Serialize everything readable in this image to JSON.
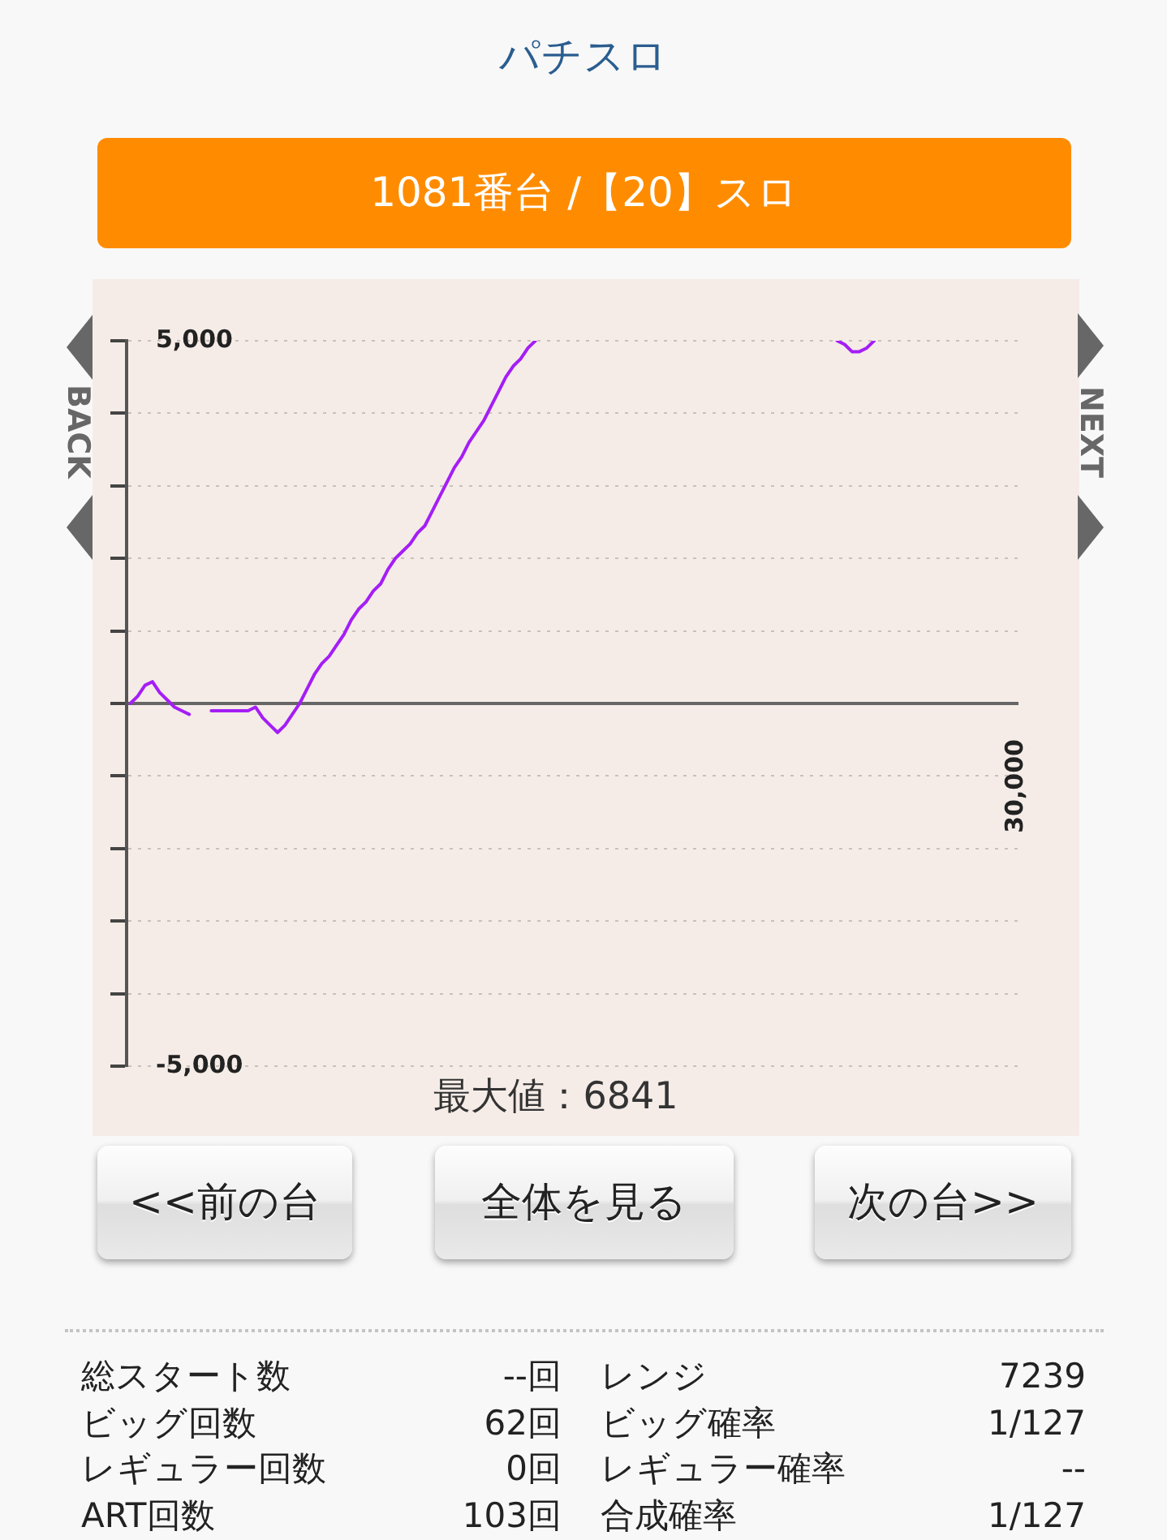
{
  "chart_data": {
    "type": "line",
    "title": "パチスロ",
    "subtitle": "1081番台 /【20】スロ",
    "categories": [
      null,
      null,
      null,
      null,
      null,
      null,
      null,
      null,
      null,
      null,
      null,
      null,
      null,
      null,
      null,
      null,
      null,
      null,
      null,
      null,
      null,
      null,
      null,
      null,
      null,
      null,
      null,
      null,
      null,
      null,
      null,
      null,
      null,
      null,
      null,
      null,
      null,
      null,
      null,
      null,
      null,
      null,
      null,
      null,
      null,
      null,
      null,
      null,
      null,
      null,
      null,
      null,
      null,
      null,
      null,
      null,
      null,
      null,
      null,
      null,
      null,
      null,
      null,
      null,
      null,
      null,
      null,
      null,
      null,
      null,
      null,
      null,
      null,
      null,
      null,
      null,
      null,
      null,
      null,
      null,
      null,
      null,
      null,
      null,
      null,
      null,
      null,
      null,
      null,
      null,
      null,
      null,
      null,
      null,
      null,
      null,
      null,
      null,
      null,
      null,
      null,
      null,
      null,
      null,
      null,
      null,
      null,
      null,
      null,
      null,
      null,
      null,
      null,
      null,
      null,
      null,
      null,
      null,
      null,
      null,
      null
    ],
    "values": [
      0,
      100,
      250,
      300,
      150,
      50,
      -50,
      -100,
      -150,
      null,
      null,
      -100,
      -100,
      -100,
      -100,
      -100,
      -100,
      -50,
      -200,
      -300,
      -400,
      -300,
      -150,
      0,
      200,
      400,
      550,
      650,
      800,
      950,
      1150,
      1300,
      1400,
      1550,
      1650,
      1850,
      2000,
      2100,
      2200,
      2350,
      2450,
      2650,
      2850,
      3050,
      3250,
      3400,
      3600,
      3750,
      3900,
      4100,
      4300,
      4500,
      4650,
      4750,
      4900,
      5000,
      null,
      null,
      null,
      null,
      null,
      null,
      null,
      null,
      null,
      null,
      null,
      null,
      null,
      null,
      null,
      null,
      null,
      null,
      null,
      null,
      null,
      null,
      null,
      null,
      null,
      null,
      null,
      null,
      null,
      null,
      null,
      null,
      null,
      null,
      null,
      null,
      null,
      null,
      null,
      null,
      5000,
      4950,
      4850,
      4850,
      4900,
      5000,
      null,
      null,
      null,
      null,
      null,
      null,
      null,
      null,
      null,
      null,
      null,
      null,
      null,
      null,
      null,
      null,
      null,
      null,
      null
    ],
    "color": "#a51ef5",
    "ylim": [
      -5000,
      5000
    ],
    "yticks": [
      {
        "value": -5000,
        "label": "-5,000"
      },
      {
        "value": -4000,
        "label": null
      },
      {
        "value": -3000,
        "label": null
      },
      {
        "value": -2000,
        "label": null
      },
      {
        "value": -1000,
        "label": null
      },
      {
        "value": 0,
        "label": null
      },
      {
        "value": 1000,
        "label": null
      },
      {
        "value": 2000,
        "label": null
      },
      {
        "value": 3000,
        "label": null
      },
      {
        "value": 4000,
        "label": null
      },
      {
        "value": 5000,
        "label": "5,000"
      }
    ],
    "grid": "y",
    "marker": "none",
    "tick_labels": "y",
    "annotations": [
      "最大値：6841",
      "30,000",
      "BACK",
      "NEXT",
      "<<前の台",
      "全体を見る",
      "次の台>>",
      "総スタート数",
      "--回",
      "レンジ",
      "7239",
      "ビッグ回数",
      "62回",
      "ビッグ確率",
      "1/127",
      "レギュラー回数",
      "0回",
      "レギュラー確率",
      "--",
      "ART回数",
      "103回",
      "合成確率",
      "1/127"
    ]
  }
}
